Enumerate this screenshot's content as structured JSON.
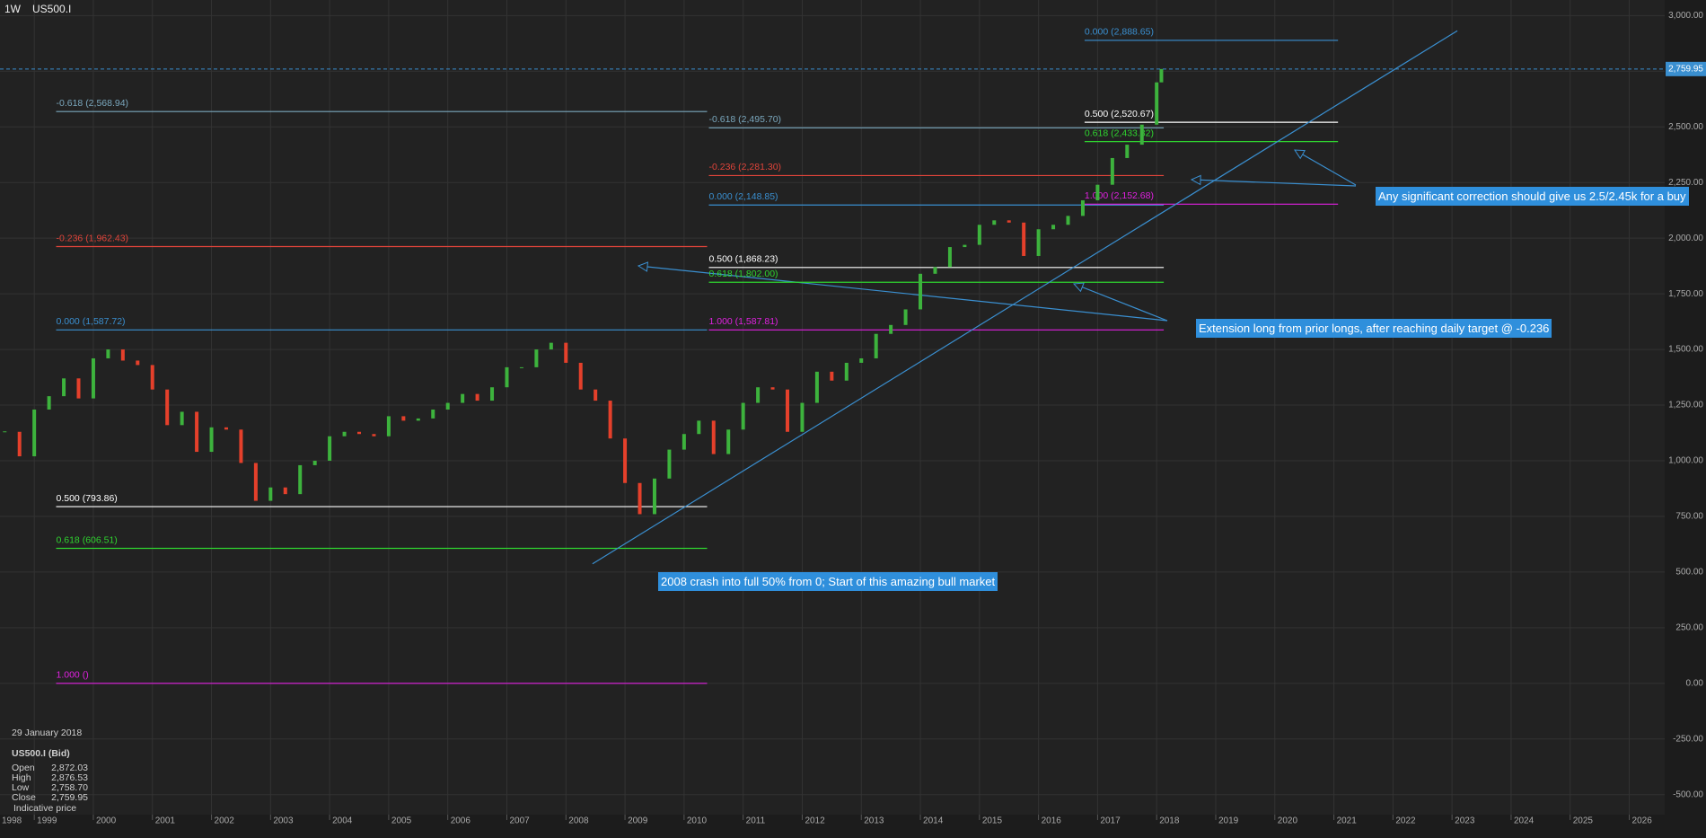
{
  "header": {
    "interval": "1W",
    "symbol": "US500.I"
  },
  "chart_data": {
    "type": "candlestick",
    "xlim": [
      1998.42,
      2026.6
    ],
    "xticks": [
      1998,
      1999,
      2000,
      2001,
      2002,
      2003,
      2004,
      2005,
      2006,
      2007,
      2008,
      2009,
      2010,
      2011,
      2012,
      2013,
      2014,
      2015,
      2016,
      2017,
      2018,
      2019,
      2020,
      2021,
      2022,
      2023,
      2024,
      2025,
      2026
    ],
    "ylim": [
      -590,
      3070
    ],
    "yticks": [
      {
        "value": 3000,
        "label": "3,000.00"
      },
      {
        "value": 2750,
        "label": "2,750.00"
      },
      {
        "value": 2500,
        "label": "2,500.00"
      },
      {
        "value": 2250,
        "label": "2,250.00"
      },
      {
        "value": 2000,
        "label": "2,000.00"
      },
      {
        "value": 1750,
        "label": "1,750.00"
      },
      {
        "value": 1500,
        "label": "1,500.00"
      },
      {
        "value": 1250,
        "label": "1,250.00"
      },
      {
        "value": 1000,
        "label": "1,000.00"
      },
      {
        "value": 750,
        "label": "750.00"
      },
      {
        "value": 500,
        "label": "500.00"
      },
      {
        "value": 250,
        "label": "250.00"
      },
      {
        "value": 0,
        "label": "0.00"
      },
      {
        "value": -250,
        "label": "-250.00"
      },
      {
        "value": -500,
        "label": "-500.00"
      }
    ],
    "grid": true,
    "up_color": "#3db33d",
    "down_color": "#e5402b",
    "x": [
      1998.5,
      1998.75,
      1999,
      1999.25,
      1999.5,
      1999.75,
      2000,
      2000.25,
      2000.5,
      2000.75,
      2001,
      2001.25,
      2001.5,
      2001.75,
      2002,
      2002.25,
      2002.5,
      2002.75,
      2003,
      2003.25,
      2003.5,
      2003.75,
      2004,
      2004.25,
      2004.5,
      2004.75,
      2005,
      2005.25,
      2005.5,
      2005.75,
      2006,
      2006.25,
      2006.5,
      2006.75,
      2007,
      2007.25,
      2007.5,
      2007.75,
      2008,
      2008.25,
      2008.5,
      2008.75,
      2009,
      2009.25,
      2009.5,
      2009.75,
      2010,
      2010.25,
      2010.5,
      2010.75,
      2011,
      2011.25,
      2011.5,
      2011.75,
      2012,
      2012.25,
      2012.5,
      2012.75,
      2013,
      2013.25,
      2013.5,
      2013.75,
      2014,
      2014.25,
      2014.5,
      2014.75,
      2015,
      2015.25,
      2015.5,
      2015.75,
      2016,
      2016.25,
      2016.5,
      2016.75,
      2017,
      2017.25,
      2017.5,
      2017.75,
      2018,
      2018.08
    ],
    "values": [
      1130,
      1020,
      1230,
      1290,
      1370,
      1280,
      1460,
      1500,
      1450,
      1430,
      1320,
      1160,
      1220,
      1040,
      1150,
      1140,
      990,
      820,
      880,
      850,
      980,
      1000,
      1110,
      1130,
      1120,
      1110,
      1200,
      1180,
      1190,
      1230,
      1260,
      1300,
      1270,
      1330,
      1420,
      1420,
      1500,
      1530,
      1440,
      1320,
      1270,
      1100,
      900,
      760,
      920,
      1050,
      1120,
      1180,
      1030,
      1140,
      1260,
      1330,
      1320,
      1130,
      1260,
      1400,
      1360,
      1440,
      1460,
      1570,
      1610,
      1680,
      1840,
      1870,
      1960,
      1970,
      2060,
      2080,
      2070,
      1920,
      2040,
      2060,
      2100,
      2170,
      2240,
      2360,
      2420,
      2510,
      2700,
      2760
    ],
    "last_price": {
      "value": 2759.95,
      "label": "2,759.95",
      "color": "#3a8fd0"
    },
    "trendline": {
      "x": [
        2008.45,
        2023.09
      ],
      "y": [
        537,
        2932
      ],
      "color": "#3a8fd0"
    },
    "fib_sets": [
      {
        "x": [
          1999.37,
          2010.39
        ],
        "levels": [
          {
            "label": "-0.618 (2,568.94)",
            "value": 2568.94,
            "color": "#7aa7bd"
          },
          {
            "label": "-0.236 (1,962.43)",
            "value": 1962.43,
            "color": "#e0443a"
          },
          {
            "label": "0.000 (1,587.72)",
            "value": 1587.72,
            "color": "#3a8fd0"
          },
          {
            "label": "0.500 (793.86)",
            "value": 793.86,
            "color": "#ffffff"
          },
          {
            "label": "0.618 (606.51)",
            "value": 606.51,
            "color": "#2fd52f"
          },
          {
            "label": "1.000 ()",
            "value": 0,
            "color": "#e021e0"
          }
        ]
      },
      {
        "x": [
          2010.42,
          2018.12
        ],
        "levels": [
          {
            "label": "-0.618 (2,495.70)",
            "value": 2495.7,
            "color": "#7aa7bd"
          },
          {
            "label": "-0.236 (2,281.30)",
            "value": 2281.3,
            "color": "#e0443a"
          },
          {
            "label": "0.000 (2,148.85)",
            "value": 2148.85,
            "color": "#3a8fd0"
          },
          {
            "label": "0.500 (1,868.23)",
            "value": 1868.23,
            "color": "#ffffff"
          },
          {
            "label": "0.618 (1,802.00)",
            "value": 1802.0,
            "color": "#2fd52f"
          },
          {
            "label": "1.000 (1,587.81)",
            "value": 1587.81,
            "color": "#e021e0"
          }
        ]
      },
      {
        "x": [
          2016.78,
          2021.07
        ],
        "levels": [
          {
            "label": "0.000 (2,888.65)",
            "value": 2888.65,
            "color": "#3a8fd0"
          },
          {
            "label": "0.500 (2,520.67)",
            "value": 2520.67,
            "color": "#ffffff"
          },
          {
            "label": "0.618 (2,433.82)",
            "value": 2433.82,
            "color": "#2fd52f"
          },
          {
            "label": "1.000 (2,152.68)",
            "value": 2152.68,
            "color": "#e021e0"
          }
        ]
      }
    ],
    "annotations": [
      "2008 crash into full 50% from 0; Start of this amazing bull market",
      "Extension long from prior longs, after reaching daily target @ -0.236",
      "Any significant correction should give us 2.5/2.45k for a buy"
    ]
  },
  "info": {
    "date": "29 January 2018",
    "title": "US500.I (Bid)",
    "rows": [
      [
        "Open",
        "2,872.03"
      ],
      [
        "High",
        "2,876.53"
      ],
      [
        "Low",
        "2,758.70"
      ],
      [
        "Close",
        "2,759.95"
      ]
    ],
    "note": "Indicative price"
  }
}
